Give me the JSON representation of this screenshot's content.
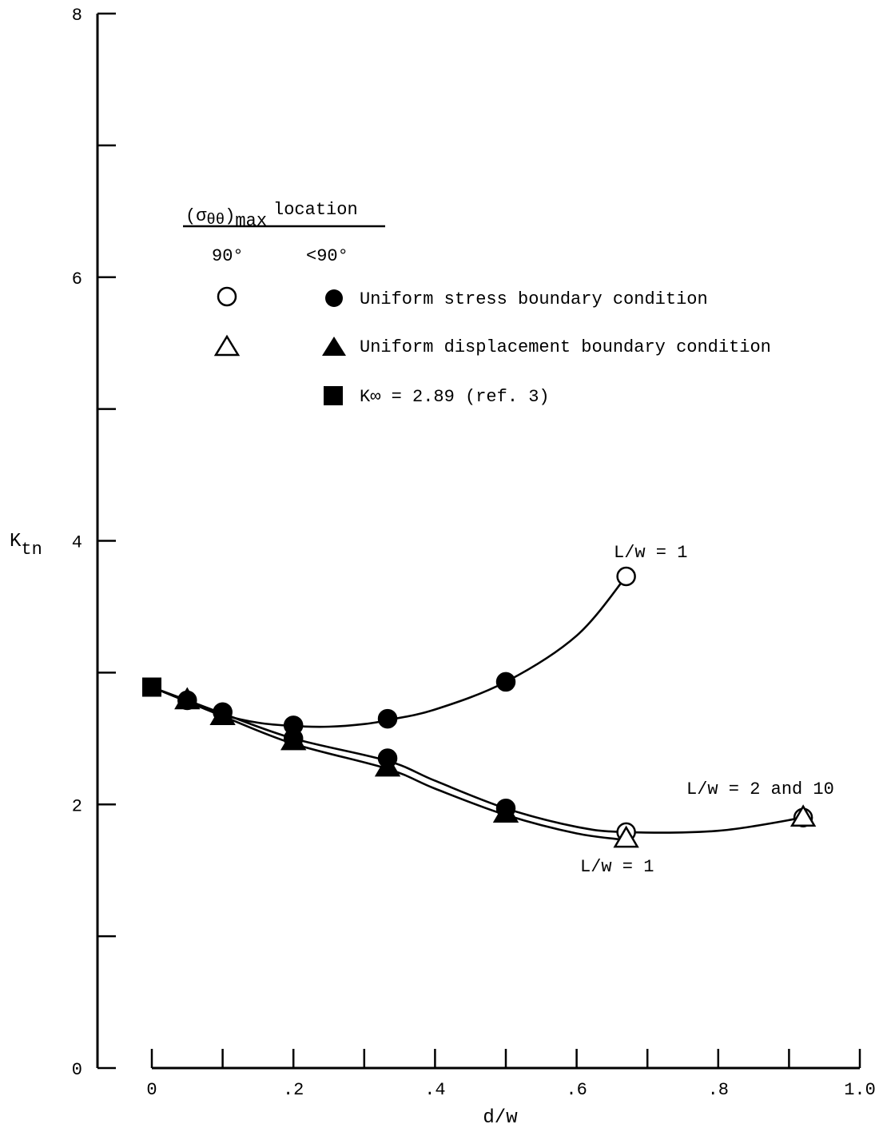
{
  "chart_data": {
    "type": "line",
    "xlabel": "d/w",
    "ylabel": "K",
    "ylabel_sub": "tn",
    "xlim": [
      0,
      1.0
    ],
    "ylim": [
      0,
      8
    ],
    "x_ticks": [
      0,
      0.1,
      0.2,
      0.3,
      0.4,
      0.5,
      0.6,
      0.7,
      0.8,
      0.9,
      1.0
    ],
    "x_tick_labels": [
      "0",
      ".2",
      ".4",
      ".6",
      ".8",
      "1.0"
    ],
    "x_tick_label_values": [
      0,
      0.2,
      0.4,
      0.6,
      0.8,
      1.0
    ],
    "y_ticks": [
      0,
      1,
      2,
      3,
      4,
      5,
      6,
      7,
      8
    ],
    "y_tick_labels": [
      "0",
      "2",
      "4",
      "6",
      "8"
    ],
    "y_tick_label_values": [
      0,
      2,
      4,
      6,
      8
    ],
    "grid": false,
    "legend": {
      "header_sigma": "σ",
      "header_sub": "θθ",
      "header_max": "max",
      "header_location": "location",
      "col_90": "90°",
      "col_lt90": "<90°",
      "row_stress": "Uniform stress boundary condition",
      "row_displacement": "Uniform displacement boundary condition",
      "row_kinf": "K∞ = 2.89 (ref. 3)",
      "placement": "upper-center"
    },
    "series": [
      {
        "name": "Uniform stress boundary condition, L/w = 1",
        "marker_filled": "circle",
        "x": [
          0.1,
          0.2,
          0.333,
          0.5
        ],
        "y": [
          2.7,
          2.6,
          2.65,
          2.93
        ],
        "x_open": [
          0.67
        ],
        "y_open": [
          3.73
        ],
        "curve_x": [
          0.0,
          0.05,
          0.1,
          0.15,
          0.2,
          0.25,
          0.3,
          0.333,
          0.4,
          0.5,
          0.6,
          0.67
        ],
        "curve_y": [
          2.89,
          2.78,
          2.68,
          2.62,
          2.595,
          2.59,
          2.61,
          2.64,
          2.72,
          2.93,
          3.28,
          3.73
        ]
      },
      {
        "name": "Uniform stress boundary condition, L/w = 2 and 10",
        "marker_filled": "circle",
        "x": [
          0.05,
          0.1,
          0.2,
          0.333,
          0.5
        ],
        "y": [
          2.79,
          2.7,
          2.5,
          2.35,
          1.97
        ],
        "x_open": [
          0.67,
          0.92
        ],
        "y_open": [
          1.79,
          1.9
        ],
        "curve_x": [
          0.0,
          0.05,
          0.1,
          0.2,
          0.333,
          0.4,
          0.5,
          0.6,
          0.67,
          0.8,
          0.92
        ],
        "curve_y": [
          2.89,
          2.79,
          2.69,
          2.5,
          2.33,
          2.18,
          1.97,
          1.83,
          1.79,
          1.8,
          1.9
        ]
      },
      {
        "name": "Uniform displacement boundary condition",
        "marker_filled": "triangle",
        "x": [
          0.05,
          0.1,
          0.2,
          0.333,
          0.5
        ],
        "y": [
          2.79,
          2.67,
          2.48,
          2.28,
          1.93
        ],
        "x_open": [
          0.67,
          0.92
        ],
        "y_open": [
          1.74,
          1.9
        ],
        "curve_x": [
          0.0,
          0.05,
          0.1,
          0.2,
          0.333,
          0.4,
          0.5,
          0.6,
          0.67
        ],
        "curve_y": [
          2.89,
          2.78,
          2.67,
          2.46,
          2.27,
          2.12,
          1.92,
          1.78,
          1.73
        ]
      }
    ],
    "reference_point": {
      "name": "K∞ = 2.89 (ref. 3)",
      "x": 0,
      "y": 2.89,
      "marker": "square"
    },
    "annotations": {
      "top_curve": "L/w = 1",
      "right": "L/w = 2 and 10",
      "bottom": "L/w = 1"
    }
  }
}
